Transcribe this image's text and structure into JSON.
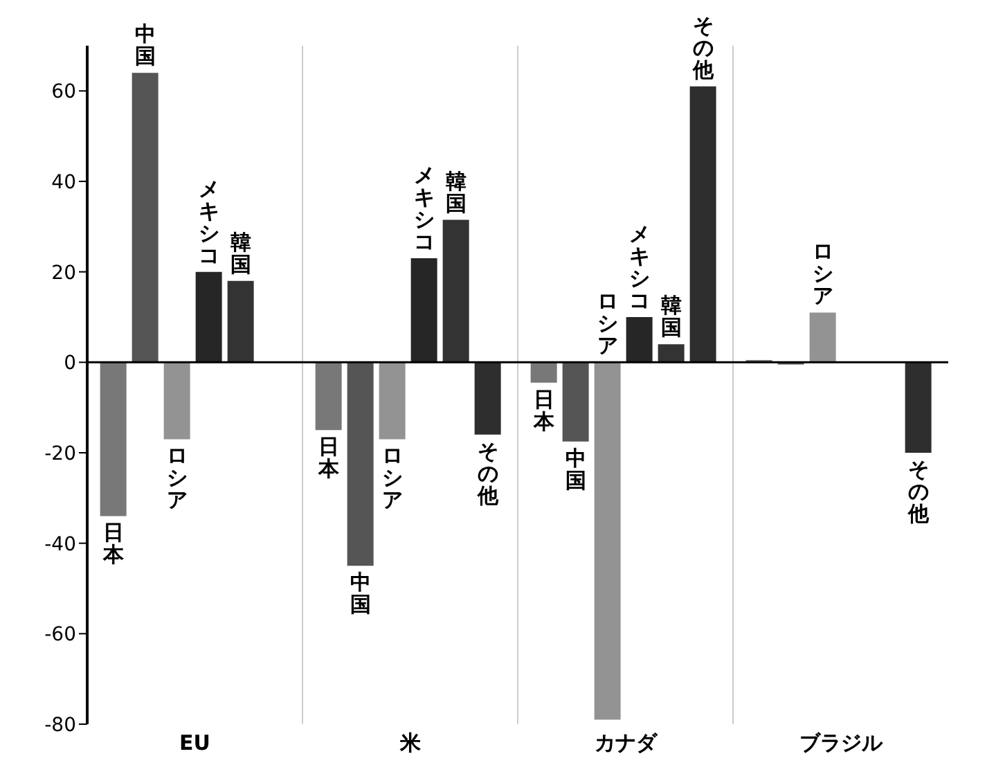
{
  "chart_data": {
    "type": "bar",
    "categories": [
      "EU",
      "米",
      "カナダ",
      "ブラジル"
    ],
    "series": [
      {
        "name": "日本",
        "color": "#787878",
        "values": [
          -34,
          -15,
          -4.5,
          0.5
        ]
      },
      {
        "name": "中国",
        "color": "#555555",
        "values": [
          64,
          -45,
          -17.5,
          -0.5
        ]
      },
      {
        "name": "ロシア",
        "color": "#939393",
        "values": [
          -17,
          -17,
          -79,
          11
        ]
      },
      {
        "name": "メキシコ",
        "color": "#262626",
        "values": [
          20,
          23,
          10,
          null
        ]
      },
      {
        "name": "韓国",
        "color": "#333333",
        "values": [
          18,
          31.5,
          4,
          null
        ]
      },
      {
        "name": "その他",
        "color": "#2e2e2e",
        "values": [
          null,
          -16,
          61,
          -20
        ]
      }
    ],
    "ylim": [
      -80,
      70
    ],
    "yticks": [
      -80,
      -60,
      -40,
      -20,
      0,
      20,
      40,
      60
    ],
    "grid": "x",
    "legend": false
  }
}
